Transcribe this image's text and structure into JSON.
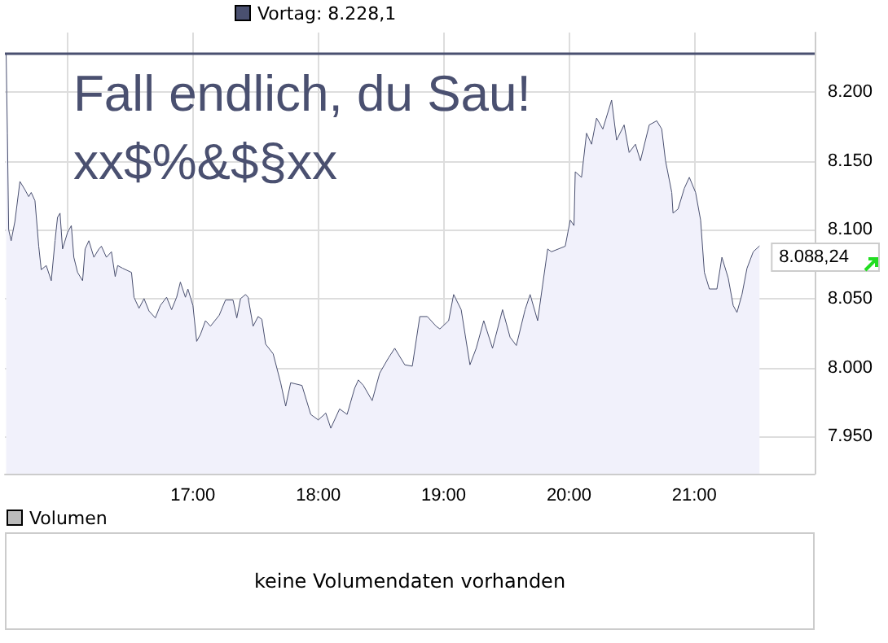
{
  "chart_data": [
    {
      "type": "area",
      "annotations": [
        "Fall endlich, du Sau!",
        "xx$%&$§xx"
      ],
      "xlim": [
        15.5,
        21.96
      ],
      "xticks": [
        {
          "value": 16,
          "label": null
        },
        {
          "value": 17,
          "label": "17:00"
        },
        {
          "value": 18,
          "label": "18:00"
        },
        {
          "value": 19,
          "label": "19:00"
        },
        {
          "value": 20,
          "label": "20:00"
        },
        {
          "value": 21,
          "label": "21:00"
        }
      ],
      "ylim": [
        7923,
        8243
      ],
      "yticks": [
        {
          "value": 7950,
          "label": "7.950"
        },
        {
          "value": 8000,
          "label": "8.000"
        },
        {
          "value": 8050,
          "label": "8.050"
        },
        {
          "value": 8100,
          "label": "8.100"
        },
        {
          "value": 8150,
          "label": "8.150"
        },
        {
          "value": 8200,
          "label": "8.200"
        }
      ],
      "grid": true,
      "ref_lines": [
        {
          "axis": "y",
          "value": 8228.1,
          "label": "Vortag: 8.228,1",
          "color": "#4a5070"
        }
      ],
      "series": [
        {
          "color": "#4a5070",
          "x": [
            15.51,
            15.52,
            15.53,
            15.55,
            15.58,
            15.62,
            15.66,
            15.69,
            15.71,
            15.74,
            15.77,
            15.79,
            15.83,
            15.87,
            15.9,
            15.92,
            15.94,
            15.96,
            16.0,
            16.03,
            16.05,
            16.08,
            16.12,
            16.14,
            16.17,
            16.21,
            16.25,
            16.27,
            16.31,
            16.35,
            16.38,
            16.4,
            16.44,
            16.51,
            16.53,
            16.57,
            16.61,
            16.65,
            16.7,
            16.74,
            16.79,
            16.83,
            16.87,
            16.9,
            16.94,
            16.96,
            17.0,
            17.03,
            17.06,
            17.1,
            17.14,
            17.21,
            17.26,
            17.32,
            17.35,
            17.38,
            17.42,
            17.44,
            17.48,
            17.52,
            17.55,
            17.58,
            17.64,
            17.7,
            17.74,
            17.78,
            17.87,
            17.94,
            18.0,
            18.06,
            18.1,
            18.17,
            18.23,
            18.29,
            18.32,
            18.36,
            18.43,
            18.49,
            18.56,
            18.61,
            18.69,
            18.75,
            18.81,
            18.87,
            18.94,
            18.97,
            19.04,
            19.08,
            19.14,
            19.21,
            19.26,
            19.32,
            19.39,
            19.47,
            19.53,
            19.58,
            19.65,
            19.69,
            19.75,
            19.79,
            19.83,
            19.86,
            19.97,
            20.01,
            20.04,
            20.05,
            20.1,
            20.14,
            20.18,
            20.22,
            20.27,
            20.34,
            20.38,
            20.44,
            20.48,
            20.53,
            20.57,
            20.64,
            20.7,
            20.74,
            20.77,
            20.82,
            20.83,
            20.87,
            20.92,
            20.96,
            21.01,
            21.05,
            21.08,
            21.12,
            21.18,
            21.22,
            21.27,
            21.31,
            21.34,
            21.38,
            21.42,
            21.47,
            21.52
          ],
          "values": [
            8228,
            8170,
            8100,
            8092,
            8106,
            8135,
            8129,
            8124,
            8127,
            8121,
            8088,
            8071,
            8074,
            8063,
            8092,
            8109,
            8112,
            8086,
            8098,
            8103,
            8080,
            8069,
            8063,
            8086,
            8092,
            8080,
            8086,
            8088,
            8080,
            8084,
            8066,
            8074,
            8072,
            8069,
            8051,
            8043,
            8050,
            8041,
            8036,
            8045,
            8051,
            8042,
            8051,
            8062,
            8051,
            8057,
            8045,
            8019,
            8024,
            8034,
            8030,
            8038,
            8049,
            8049,
            8036,
            8050,
            8053,
            8051,
            8030,
            8037,
            8035,
            8017,
            8010,
            7989,
            7972,
            7989,
            7987,
            7966,
            7962,
            7967,
            7956,
            7970,
            7966,
            7985,
            7991,
            7987,
            7976,
            7996,
            8007,
            8014,
            8002,
            8001,
            8037,
            8037,
            8030,
            8028,
            8034,
            8053,
            8042,
            8002,
            8014,
            8034,
            8014,
            8042,
            8022,
            8016,
            8042,
            8053,
            8034,
            8060,
            8086,
            8084,
            8088,
            8107,
            8103,
            8142,
            8138,
            8170,
            8162,
            8181,
            8173,
            8194,
            8165,
            8176,
            8156,
            8162,
            8150,
            8176,
            8179,
            8173,
            8150,
            8127,
            8112,
            8115,
            8130,
            8138,
            8127,
            8107,
            8069,
            8057,
            8057,
            8080,
            8065,
            8045,
            8040,
            8053,
            8072,
            8084,
            8088.24
          ],
          "value_labels": [
            null,
            null,
            null,
            null,
            null,
            null,
            null,
            null,
            null,
            null,
            null,
            null,
            null,
            null,
            null,
            null,
            null,
            null,
            null,
            null,
            null,
            null,
            null,
            null,
            null,
            null,
            null,
            null,
            null,
            null,
            null,
            null,
            null,
            null,
            null,
            null,
            null,
            null,
            null,
            null,
            null,
            null,
            null,
            null,
            null,
            null,
            null,
            null,
            null,
            null,
            null,
            null,
            null,
            null,
            null,
            null,
            null,
            null,
            null,
            null,
            null,
            null,
            null,
            null,
            null,
            null,
            null,
            null,
            null,
            null,
            null,
            null,
            null,
            null,
            null,
            null,
            null,
            null,
            null,
            null,
            null,
            null,
            null,
            null,
            null,
            null,
            null,
            null,
            null,
            null,
            null,
            null,
            null,
            null,
            null,
            null,
            null,
            null,
            null,
            null,
            null,
            null,
            null,
            null,
            null,
            null,
            null,
            null,
            null,
            null,
            null,
            null,
            null,
            null,
            null,
            null,
            null,
            null,
            null,
            null,
            null,
            null,
            null,
            null,
            null,
            null,
            null,
            null,
            null,
            null,
            null,
            null,
            null,
            null,
            null,
            null,
            null,
            null,
            "8.088,24"
          ]
        }
      ]
    },
    {
      "type": "other",
      "title": "Volumen",
      "annotations": [
        "keine Volumendaten vorhanden"
      ]
    }
  ]
}
